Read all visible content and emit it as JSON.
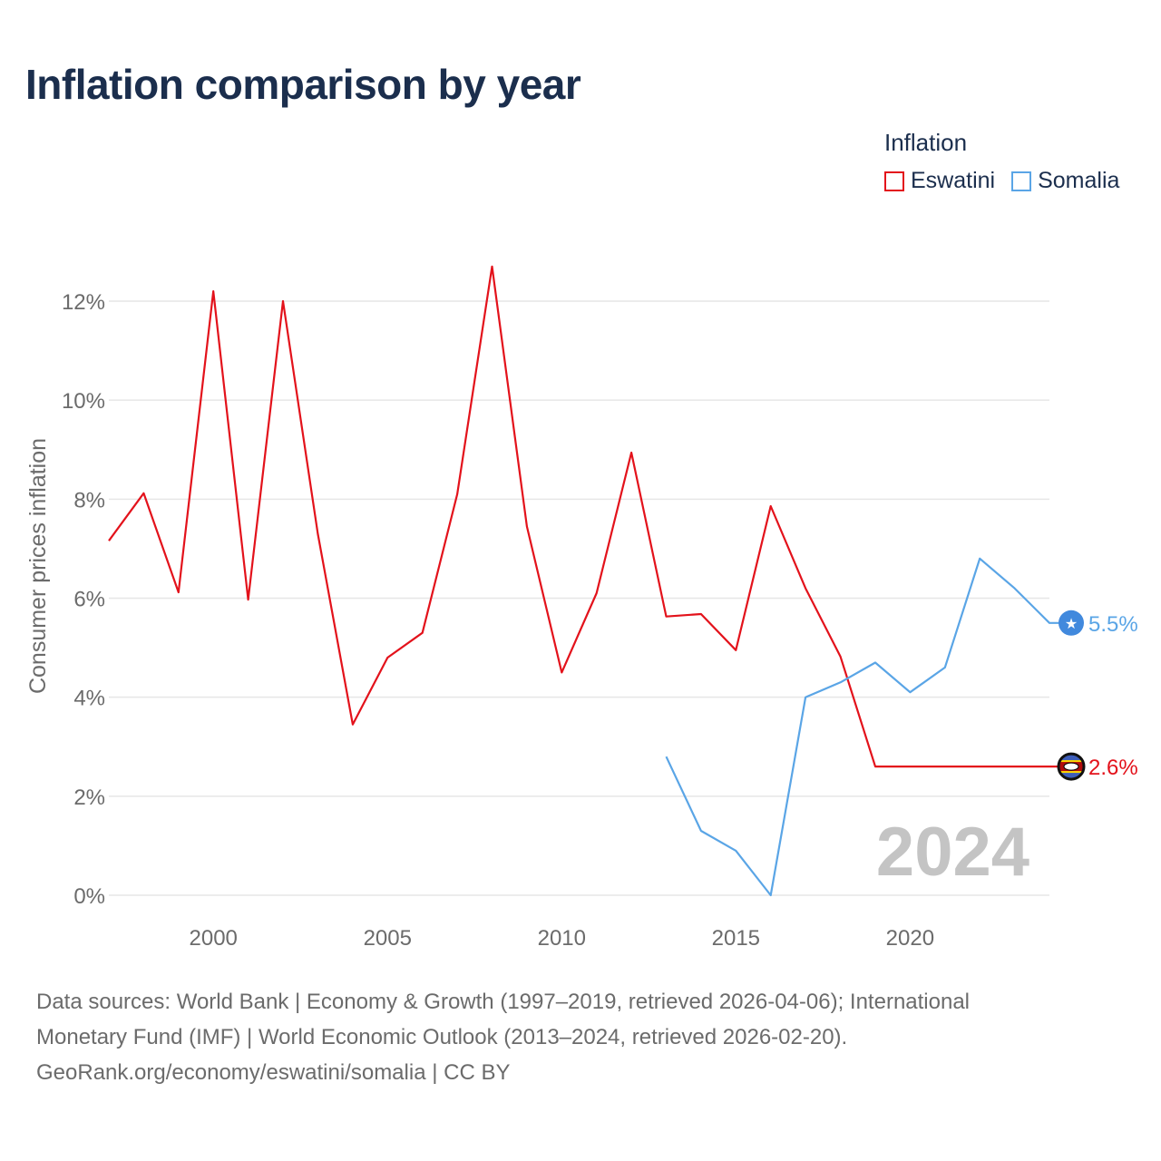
{
  "title": "Inflation comparison by year",
  "legend": {
    "title": "Inflation",
    "items": [
      {
        "label": "Eswatini",
        "color": "#e3121b"
      },
      {
        "label": "Somalia",
        "color": "#5aa5e6"
      }
    ]
  },
  "chart_data": {
    "type": "line",
    "title": "Inflation comparison by year",
    "xlabel": "",
    "ylabel": "Consumer prices inflation",
    "xlim": [
      1997,
      2024
    ],
    "ylim": [
      0,
      12.5
    ],
    "x_ticks": [
      2000,
      2005,
      2010,
      2015,
      2020
    ],
    "y_ticks": [
      0,
      2,
      4,
      6,
      8,
      10,
      12
    ],
    "y_tick_labels": [
      "0%",
      "2%",
      "4%",
      "6%",
      "8%",
      "10%",
      "12%"
    ],
    "grid": true,
    "legend_position": "top-right",
    "year_watermark": "2024",
    "series": [
      {
        "name": "Eswatini",
        "color": "#e3121b",
        "x": [
          1997,
          1998,
          1999,
          2000,
          2001,
          2002,
          2003,
          2004,
          2005,
          2006,
          2007,
          2008,
          2009,
          2010,
          2011,
          2012,
          2013,
          2014,
          2015,
          2016,
          2017,
          2018,
          2019,
          2020,
          2021,
          2022,
          2023,
          2024
        ],
        "values": [
          7.16,
          8.12,
          6.12,
          12.2,
          5.97,
          12.0,
          7.3,
          3.45,
          4.8,
          5.3,
          8.1,
          12.7,
          7.45,
          4.5,
          6.1,
          8.94,
          5.63,
          5.68,
          4.95,
          7.86,
          6.2,
          4.82,
          2.6,
          2.6,
          2.6,
          2.6,
          2.6,
          2.6
        ],
        "end_label": "2.6%"
      },
      {
        "name": "Somalia",
        "color": "#5aa5e6",
        "x": [
          2013,
          2014,
          2015,
          2016,
          2017,
          2018,
          2019,
          2020,
          2021,
          2022,
          2023,
          2024
        ],
        "values": [
          2.8,
          1.3,
          0.9,
          0.0,
          4.0,
          4.3,
          4.7,
          4.1,
          4.6,
          6.8,
          6.2,
          5.5
        ],
        "end_label": "5.5%"
      }
    ]
  },
  "sources": {
    "line1": "Data sources: World Bank | Economy & Growth (1997–2019, retrieved 2026-04-06); International",
    "line2": "Monetary Fund (IMF) | World Economic Outlook (2013–2024, retrieved 2026-02-20).",
    "line3": "GeoRank.org/economy/eswatini/somalia | CC BY"
  }
}
